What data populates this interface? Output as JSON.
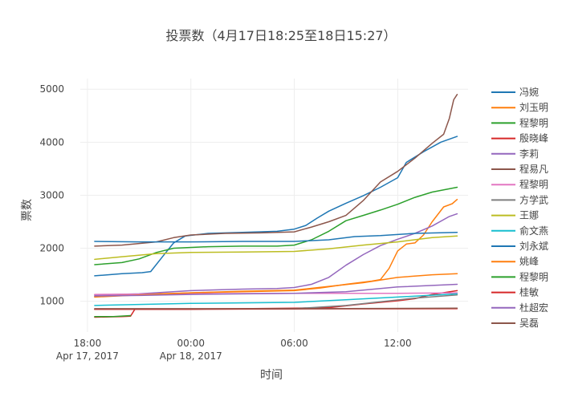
{
  "chart_data": {
    "type": "line",
    "title": "投票数（4月17日18:25至18日15:27）",
    "xlabel": "时间",
    "ylabel": "票数",
    "x_range": [
      "2017-04-17 17:35",
      "2017-04-18 16:05"
    ],
    "ylim": [
      420,
      5200
    ],
    "yticks": [
      1000,
      2000,
      3000,
      4000,
      5000
    ],
    "xticks": [
      {
        "time": "2017-04-17 18:00",
        "label": "18:00",
        "sublabel": "Apr 17, 2017"
      },
      {
        "time": "2017-04-18 00:00",
        "label": "00:00",
        "sublabel": "Apr 18, 2017"
      },
      {
        "time": "2017-04-18 06:00",
        "label": "06:00",
        "sublabel": ""
      },
      {
        "time": "2017-04-18 12:00",
        "label": "12:00",
        "sublabel": ""
      }
    ],
    "grid": true,
    "legend_position": "right",
    "series": [
      {
        "name": "冯婉",
        "color": "#1f77b4",
        "points": [
          [
            "2017-04-17 18:25",
            1480
          ],
          [
            "2017-04-17 20:00",
            1520
          ],
          [
            "2017-04-17 21:10",
            1540
          ],
          [
            "2017-04-17 21:40",
            1560
          ],
          [
            "2017-04-17 22:30",
            1900
          ],
          [
            "2017-04-17 23:00",
            2100
          ],
          [
            "2017-04-17 23:40",
            2230
          ],
          [
            "2017-04-18 01:00",
            2280
          ],
          [
            "2017-04-18 03:00",
            2300
          ],
          [
            "2017-04-18 05:00",
            2320
          ],
          [
            "2017-04-18 06:00",
            2360
          ],
          [
            "2017-04-18 06:40",
            2430
          ],
          [
            "2017-04-18 07:20",
            2570
          ],
          [
            "2017-04-18 08:00",
            2700
          ],
          [
            "2017-04-18 09:00",
            2850
          ],
          [
            "2017-04-18 10:00",
            2990
          ],
          [
            "2017-04-18 11:00",
            3150
          ],
          [
            "2017-04-18 12:00",
            3330
          ],
          [
            "2017-04-18 12:30",
            3620
          ],
          [
            "2017-04-18 13:30",
            3820
          ],
          [
            "2017-04-18 14:30",
            4000
          ],
          [
            "2017-04-18 15:27",
            4110
          ]
        ]
      },
      {
        "name": "刘玉明",
        "color": "#ff7f0e",
        "points": [
          [
            "2017-04-17 18:25",
            1090
          ],
          [
            "2017-04-17 21:00",
            1130
          ],
          [
            "2017-04-18 00:00",
            1160
          ],
          [
            "2017-04-18 03:00",
            1180
          ],
          [
            "2017-04-18 06:00",
            1200
          ],
          [
            "2017-04-18 07:30",
            1250
          ],
          [
            "2017-04-18 09:00",
            1320
          ],
          [
            "2017-04-18 10:30",
            1380
          ],
          [
            "2017-04-18 11:00",
            1410
          ],
          [
            "2017-04-18 11:30",
            1620
          ],
          [
            "2017-04-18 12:00",
            1950
          ],
          [
            "2017-04-18 12:30",
            2080
          ],
          [
            "2017-04-18 13:00",
            2100
          ],
          [
            "2017-04-18 13:30",
            2250
          ],
          [
            "2017-04-18 14:00",
            2500
          ],
          [
            "2017-04-18 14:40",
            2780
          ],
          [
            "2017-04-18 15:10",
            2840
          ],
          [
            "2017-04-18 15:27",
            2920
          ]
        ]
      },
      {
        "name": "程黎明",
        "color": "#2ca02c",
        "points": [
          [
            "2017-04-17 18:25",
            1690
          ],
          [
            "2017-04-17 20:00",
            1730
          ],
          [
            "2017-04-17 21:00",
            1800
          ],
          [
            "2017-04-17 22:00",
            1920
          ],
          [
            "2017-04-17 23:00",
            2000
          ],
          [
            "2017-04-18 01:00",
            2030
          ],
          [
            "2017-04-18 03:00",
            2040
          ],
          [
            "2017-04-18 05:00",
            2040
          ],
          [
            "2017-04-18 06:00",
            2060
          ],
          [
            "2017-04-18 07:00",
            2160
          ],
          [
            "2017-04-18 08:00",
            2320
          ],
          [
            "2017-04-18 09:00",
            2520
          ],
          [
            "2017-04-18 10:00",
            2620
          ],
          [
            "2017-04-18 11:00",
            2720
          ],
          [
            "2017-04-18 12:00",
            2830
          ],
          [
            "2017-04-18 13:00",
            2960
          ],
          [
            "2017-04-18 14:00",
            3060
          ],
          [
            "2017-04-18 15:27",
            3150
          ]
        ]
      },
      {
        "name": "殷晓峰",
        "color": "#d62728",
        "points": [
          [
            "2017-04-17 18:25",
            700
          ],
          [
            "2017-04-17 20:00",
            710
          ],
          [
            "2017-04-17 20:30",
            720
          ],
          [
            "2017-04-17 20:45",
            850
          ],
          [
            "2017-04-17 23:00",
            850
          ],
          [
            "2017-04-18 03:00",
            860
          ],
          [
            "2017-04-18 06:00",
            870
          ],
          [
            "2017-04-18 08:00",
            880
          ],
          [
            "2017-04-18 10:00",
            950
          ],
          [
            "2017-04-18 11:00",
            980
          ],
          [
            "2017-04-18 12:00",
            1010
          ],
          [
            "2017-04-18 13:00",
            1050
          ],
          [
            "2017-04-18 14:00",
            1130
          ],
          [
            "2017-04-18 15:27",
            1200
          ]
        ]
      },
      {
        "name": "李莉",
        "color": "#9467bd",
        "points": [
          [
            "2017-04-17 18:25",
            1120
          ],
          [
            "2017-04-17 21:00",
            1140
          ],
          [
            "2017-04-18 00:00",
            1200
          ],
          [
            "2017-04-18 03:00",
            1230
          ],
          [
            "2017-04-18 05:00",
            1240
          ],
          [
            "2017-04-18 06:00",
            1260
          ],
          [
            "2017-04-18 07:00",
            1320
          ],
          [
            "2017-04-18 08:00",
            1450
          ],
          [
            "2017-04-18 09:00",
            1680
          ],
          [
            "2017-04-18 10:00",
            1880
          ],
          [
            "2017-04-18 11:00",
            2050
          ],
          [
            "2017-04-18 12:00",
            2170
          ],
          [
            "2017-04-18 13:00",
            2280
          ],
          [
            "2017-04-18 14:00",
            2420
          ],
          [
            "2017-04-18 15:00",
            2600
          ],
          [
            "2017-04-18 15:27",
            2650
          ]
        ]
      },
      {
        "name": "程易凡",
        "color": "#8c564b",
        "points": [
          [
            "2017-04-17 18:25",
            2040
          ],
          [
            "2017-04-17 20:00",
            2060
          ],
          [
            "2017-04-17 22:00",
            2120
          ],
          [
            "2017-04-17 23:00",
            2200
          ],
          [
            "2017-04-18 00:00",
            2250
          ],
          [
            "2017-04-18 02:00",
            2280
          ],
          [
            "2017-04-18 04:00",
            2290
          ],
          [
            "2017-04-18 06:00",
            2310
          ],
          [
            "2017-04-18 07:00",
            2400
          ],
          [
            "2017-04-18 08:00",
            2500
          ],
          [
            "2017-04-18 09:00",
            2620
          ],
          [
            "2017-04-18 10:00",
            2900
          ],
          [
            "2017-04-18 11:00",
            3250
          ],
          [
            "2017-04-18 12:00",
            3450
          ],
          [
            "2017-04-18 13:00",
            3700
          ],
          [
            "2017-04-18 14:00",
            3980
          ],
          [
            "2017-04-18 14:40",
            4150
          ],
          [
            "2017-04-18 15:00",
            4450
          ],
          [
            "2017-04-18 15:15",
            4800
          ],
          [
            "2017-04-18 15:27",
            4900
          ]
        ]
      },
      {
        "name": "程黎明",
        "color": "#e377c2",
        "points": [
          [
            "2017-04-17 18:25",
            1130
          ],
          [
            "2017-04-18 00:00",
            1140
          ],
          [
            "2017-04-18 06:00",
            1150
          ],
          [
            "2017-04-18 12:00",
            1150
          ],
          [
            "2017-04-18 15:27",
            1160
          ]
        ]
      },
      {
        "name": "方学武",
        "color": "#7f7f7f",
        "points": [
          [
            "2017-04-17 18:25",
            850
          ],
          [
            "2017-04-18 00:00",
            850
          ],
          [
            "2017-04-18 06:00",
            860
          ],
          [
            "2017-04-18 09:00",
            920
          ],
          [
            "2017-04-18 11:00",
            990
          ],
          [
            "2017-04-18 13:00",
            1060
          ],
          [
            "2017-04-18 15:27",
            1120
          ]
        ]
      },
      {
        "name": "王娜",
        "color": "#bcbd22",
        "points": [
          [
            "2017-04-17 18:25",
            1790
          ],
          [
            "2017-04-17 20:00",
            1840
          ],
          [
            "2017-04-17 22:00",
            1900
          ],
          [
            "2017-04-18 00:00",
            1920
          ],
          [
            "2017-04-18 03:00",
            1930
          ],
          [
            "2017-04-18 06:00",
            1940
          ],
          [
            "2017-04-18 08:00",
            1990
          ],
          [
            "2017-04-18 10:00",
            2060
          ],
          [
            "2017-04-18 12:00",
            2120
          ],
          [
            "2017-04-18 14:00",
            2200
          ],
          [
            "2017-04-18 15:27",
            2230
          ]
        ]
      },
      {
        "name": "俞文燕",
        "color": "#17becf",
        "points": [
          [
            "2017-04-17 18:25",
            920
          ],
          [
            "2017-04-17 21:00",
            940
          ],
          [
            "2017-04-18 00:00",
            960
          ],
          [
            "2017-04-18 06:00",
            980
          ],
          [
            "2017-04-18 09:00",
            1030
          ],
          [
            "2017-04-18 12:00",
            1080
          ],
          [
            "2017-04-18 15:27",
            1140
          ]
        ]
      },
      {
        "name": "刘永斌",
        "color": "#1f77b4",
        "points": [
          [
            "2017-04-17 18:25",
            2130
          ],
          [
            "2017-04-17 21:00",
            2120
          ],
          [
            "2017-04-18 00:00",
            2120
          ],
          [
            "2017-04-18 03:00",
            2130
          ],
          [
            "2017-04-18 06:00",
            2130
          ],
          [
            "2017-04-18 08:00",
            2160
          ],
          [
            "2017-04-18 09:30",
            2220
          ],
          [
            "2017-04-18 11:00",
            2240
          ],
          [
            "2017-04-18 13:00",
            2280
          ],
          [
            "2017-04-18 15:27",
            2300
          ]
        ]
      },
      {
        "name": "姚峰",
        "color": "#ff7f0e",
        "points": [
          [
            "2017-04-17 18:25",
            1080
          ],
          [
            "2017-04-17 21:00",
            1120
          ],
          [
            "2017-04-18 00:00",
            1160
          ],
          [
            "2017-04-18 03:00",
            1190
          ],
          [
            "2017-04-18 06:00",
            1210
          ],
          [
            "2017-04-18 08:00",
            1280
          ],
          [
            "2017-04-18 10:00",
            1350
          ],
          [
            "2017-04-18 12:00",
            1450
          ],
          [
            "2017-04-18 14:00",
            1500
          ],
          [
            "2017-04-18 15:27",
            1520
          ]
        ]
      },
      {
        "name": "程黎明",
        "color": "#2ca02c",
        "points": [
          [
            "2017-04-17 18:25",
            710
          ],
          [
            "2017-04-17 19:30",
            710
          ],
          [
            "2017-04-17 20:30",
            730
          ]
        ]
      },
      {
        "name": "桂敏",
        "color": "#d62728",
        "points": [
          [
            "2017-04-17 18:25",
            850
          ],
          [
            "2017-04-18 00:00",
            850
          ],
          [
            "2017-04-18 06:00",
            855
          ],
          [
            "2017-04-18 15:27",
            860
          ]
        ]
      },
      {
        "name": "杜超宏",
        "color": "#9467bd",
        "points": [
          [
            "2017-04-17 18:25",
            1100
          ],
          [
            "2017-04-17 21:00",
            1110
          ],
          [
            "2017-04-18 00:00",
            1130
          ],
          [
            "2017-04-18 06:00",
            1150
          ],
          [
            "2017-04-18 09:00",
            1180
          ],
          [
            "2017-04-18 12:00",
            1270
          ],
          [
            "2017-04-18 15:27",
            1320
          ]
        ]
      },
      {
        "name": "吴磊",
        "color": "#8c564b",
        "points": [
          [
            "2017-04-17 18:25",
            860
          ],
          [
            "2017-04-18 06:00",
            860
          ],
          [
            "2017-04-18 15:27",
            870
          ]
        ]
      }
    ]
  }
}
